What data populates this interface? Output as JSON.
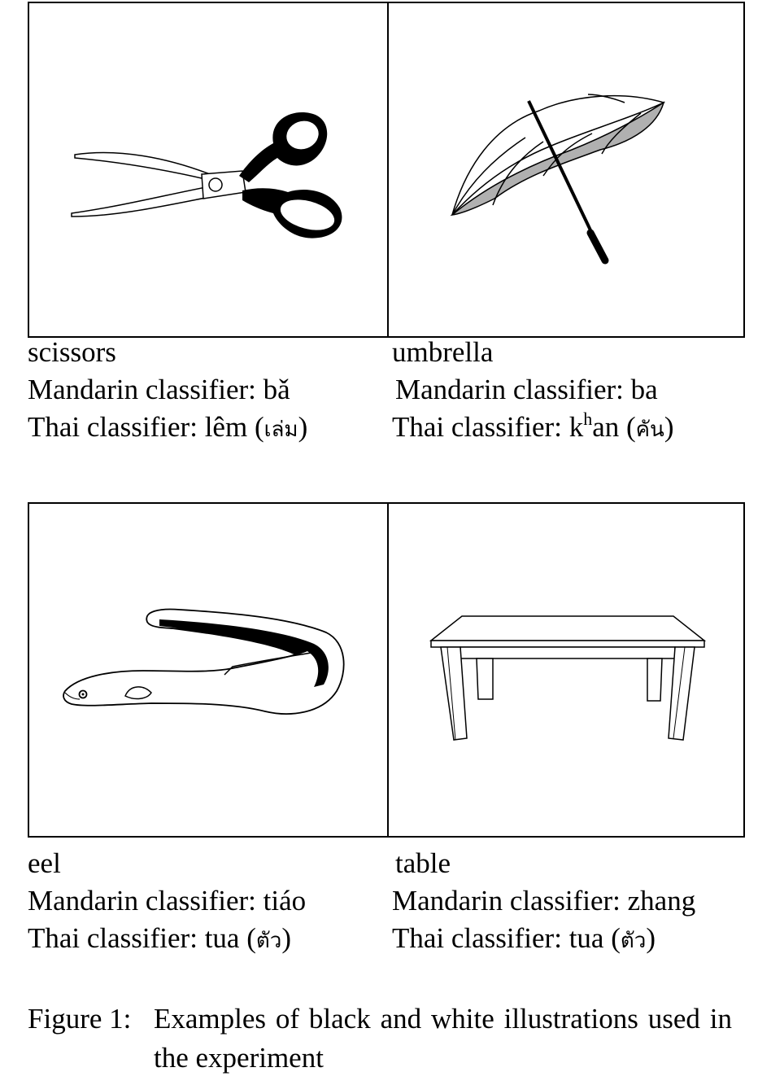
{
  "items": [
    {
      "name": "scissors",
      "mandarin_label": "Mandarin classifier: ",
      "mandarin_value": "bǎ",
      "thai_label": "Thai classifier: ",
      "thai_value": "lêm",
      "thai_script": "เล่ม"
    },
    {
      "name": "umbrella",
      "mandarin_label": "Mandarin classifier: ",
      "mandarin_value": "ba",
      "thai_label": "Thai classifier: ",
      "thai_value_prefix": "k",
      "thai_value_sup": "h",
      "thai_value_suffix": "an",
      "thai_script": "คัน"
    },
    {
      "name": "eel",
      "mandarin_label": "Mandarin classifier: ",
      "mandarin_value": "tiáo",
      "thai_label": "Thai classifier: ",
      "thai_value": "tua",
      "thai_script": "ตัว"
    },
    {
      "name": "table",
      "mandarin_label": "Mandarin classifier: ",
      "mandarin_value": "zhang",
      "thai_label": "Thai classifier: ",
      "thai_value": "tua",
      "thai_script": "ตัว"
    }
  ],
  "figure_caption": {
    "label": "Figure 1:",
    "text": "Examples of black and white illustrations used in the experiment"
  },
  "icons": [
    "scissors-illustration",
    "umbrella-illustration",
    "eel-illustration",
    "table-illustration"
  ]
}
